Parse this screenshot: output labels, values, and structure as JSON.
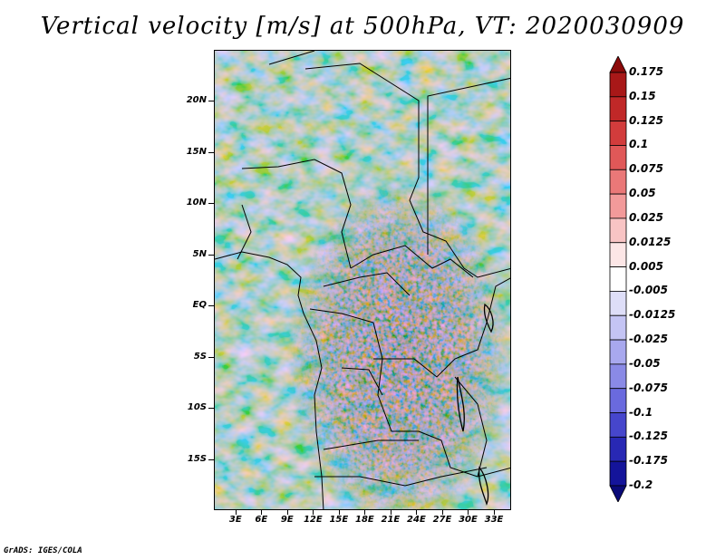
{
  "title": "Vertical velocity [m/s] at 500hPa, VT: 2020030909",
  "credit": "GrADS: IGES/COLA",
  "map": {
    "lon_labels": [
      "3E",
      "6E",
      "9E",
      "12E",
      "15E",
      "18E",
      "21E",
      "24E",
      "27E",
      "30E",
      "33E"
    ],
    "lon_values": [
      3,
      6,
      9,
      12,
      15,
      18,
      21,
      24,
      27,
      30,
      33
    ],
    "lat_labels": [
      "20N",
      "15N",
      "10N",
      "5N",
      "EQ",
      "5S",
      "10S",
      "15S"
    ],
    "lat_values": [
      20,
      15,
      10,
      5,
      0,
      -5,
      -10,
      -15
    ],
    "lon_range": [
      0.5,
      35.0
    ],
    "lat_range": [
      -20.0,
      25.0
    ]
  },
  "colorbar": {
    "labels": [
      "0.175",
      "0.15",
      "0.125",
      "0.1",
      "0.075",
      "0.05",
      "0.025",
      "0.0125",
      "0.005",
      "-0.005",
      "-0.0125",
      "-0.025",
      "-0.05",
      "-0.075",
      "-0.1",
      "-0.125",
      "-0.175",
      "-0.2"
    ],
    "colors": [
      "#8b0a0a",
      "#a81818",
      "#c02828",
      "#d23c3c",
      "#e05858",
      "#ea7878",
      "#f29a9a",
      "#f8c4c4",
      "#fce6e6",
      "#ffffff",
      "#dedef8",
      "#c4c4f4",
      "#a8a8ee",
      "#8a8ae6",
      "#6a6ade",
      "#4646cc",
      "#2828b4",
      "#14149a",
      "#0a0a78"
    ]
  }
}
